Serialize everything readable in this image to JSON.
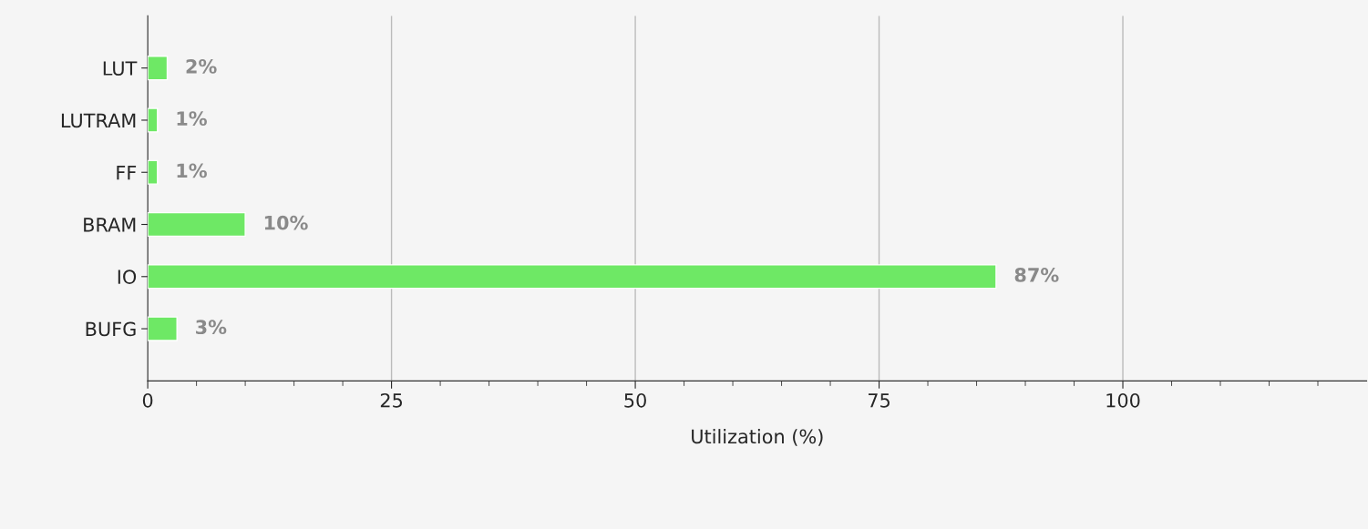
{
  "chart_data": {
    "type": "bar",
    "orientation": "horizontal",
    "xlabel": "Utilization (%)",
    "categories": [
      "LUT",
      "LUTRAM",
      "FF",
      "BRAM",
      "IO",
      "BUFG"
    ],
    "values": [
      2,
      1,
      1,
      10,
      87,
      3
    ],
    "color": "#6ee865",
    "xlim": [
      0,
      125
    ],
    "xticks": [
      0,
      {
        "value": 5,
        "label": null
      },
      {
        "value": 10,
        "label": null
      },
      {
        "value": 15,
        "label": null
      },
      {
        "value": 20,
        "label": null
      },
      25,
      {
        "value": 30,
        "label": null
      },
      {
        "value": 35,
        "label": null
      },
      {
        "value": 40,
        "label": null
      },
      {
        "value": 45,
        "label": null
      },
      50,
      {
        "value": 55,
        "label": null
      },
      {
        "value": 60,
        "label": null
      },
      {
        "value": 65,
        "label": null
      },
      {
        "value": 70,
        "label": null
      },
      75,
      {
        "value": 80,
        "label": null
      },
      {
        "value": 85,
        "label": null
      },
      {
        "value": 90,
        "label": null
      },
      {
        "value": 95,
        "label": null
      },
      100,
      {
        "value": 105,
        "label": null
      },
      {
        "value": 110,
        "label": null
      },
      {
        "value": 115,
        "label": null
      },
      {
        "value": 120,
        "label": null
      }
    ],
    "grid": "x",
    "data_labels": true,
    "value_labels": [
      "2%",
      "1%",
      "1%",
      "10%",
      "87%",
      "3%"
    ]
  }
}
